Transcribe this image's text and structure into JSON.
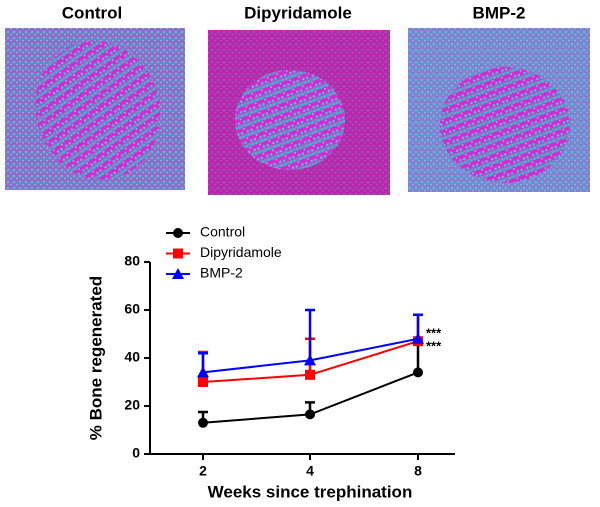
{
  "image_labels": [
    "Control",
    "Dipyridamole",
    "BMP-2"
  ],
  "chart_data": {
    "type": "line",
    "x_label": "Weeks since trephination",
    "y_label": "% Bone regenerated",
    "categories": [
      "2",
      "4",
      "8"
    ],
    "ylim": [
      0,
      80
    ],
    "yticks": [
      0,
      20,
      40,
      60,
      80
    ],
    "grid": false,
    "legend": "top",
    "series": [
      {
        "name": "Control",
        "color": "#000000",
        "marker": "circle",
        "values": [
          13,
          16.5,
          34
        ],
        "errors": [
          4.5,
          5,
          12
        ]
      },
      {
        "name": "Dipyridamole",
        "color": "#ff0000",
        "marker": "square",
        "values": [
          30,
          33,
          47
        ],
        "errors": [
          12.5,
          15,
          11
        ]
      },
      {
        "name": "BMP-2",
        "color": "#0000ff",
        "marker": "triangle",
        "values": [
          34,
          39,
          48
        ],
        "errors": [
          8,
          21,
          10
        ]
      }
    ],
    "annotations": [
      "***",
      "***"
    ]
  }
}
